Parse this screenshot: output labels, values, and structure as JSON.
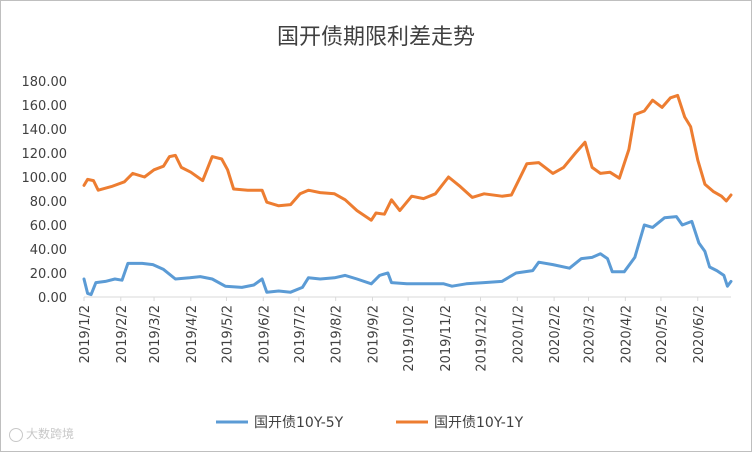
{
  "chart_data": {
    "type": "line",
    "title": "国开债期限利差走势",
    "xlabel": "",
    "ylabel": "",
    "ylim": [
      0,
      180
    ],
    "yticks": [
      "0.00",
      "20.00",
      "40.00",
      "60.00",
      "80.00",
      "100.00",
      "120.00",
      "140.00",
      "160.00",
      "180.00"
    ],
    "xticks": [
      "2019/1/2",
      "2019/2/2",
      "2019/3/2",
      "2019/4/2",
      "2019/5/2",
      "2019/6/2",
      "2019/7/2",
      "2019/8/2",
      "2019/9/2",
      "2019/10/2",
      "2019/11/2",
      "2019/12/2",
      "2020/1/2",
      "2020/2/2",
      "2020/3/2",
      "2020/4/2",
      "2020/5/2",
      "2020/6/2"
    ],
    "x_range": [
      "2019/1/2",
      "2020/6/30"
    ],
    "grid": false,
    "legend_position": "bottom",
    "series": [
      {
        "name": "国开债10Y-5Y",
        "color": "#5b9bd5",
        "points": [
          [
            "2019/1/2",
            15
          ],
          [
            "2019/1/5",
            3
          ],
          [
            "2019/1/8",
            2
          ],
          [
            "2019/1/12",
            12
          ],
          [
            "2019/1/20",
            13
          ],
          [
            "2019/1/28",
            15
          ],
          [
            "2019/2/3",
            14
          ],
          [
            "2019/2/8",
            28
          ],
          [
            "2019/2/20",
            28
          ],
          [
            "2019/3/1",
            27
          ],
          [
            "2019/3/10",
            23
          ],
          [
            "2019/3/20",
            15
          ],
          [
            "2019/4/1",
            16
          ],
          [
            "2019/4/10",
            17
          ],
          [
            "2019/4/20",
            15
          ],
          [
            "2019/5/1",
            9
          ],
          [
            "2019/5/15",
            8
          ],
          [
            "2019/5/25",
            10
          ],
          [
            "2019/6/1",
            15
          ],
          [
            "2019/6/5",
            4
          ],
          [
            "2019/6/15",
            5
          ],
          [
            "2019/6/25",
            4
          ],
          [
            "2019/7/5",
            8
          ],
          [
            "2019/7/10",
            16
          ],
          [
            "2019/7/20",
            15
          ],
          [
            "2019/8/1",
            16
          ],
          [
            "2019/8/10",
            18
          ],
          [
            "2019/8/20",
            15
          ],
          [
            "2019/9/1",
            11
          ],
          [
            "2019/9/8",
            18
          ],
          [
            "2019/9/15",
            20
          ],
          [
            "2019/9/18",
            12
          ],
          [
            "2019/10/1",
            11
          ],
          [
            "2019/10/15",
            11
          ],
          [
            "2019/11/1",
            11
          ],
          [
            "2019/11/8",
            9
          ],
          [
            "2019/11/20",
            11
          ],
          [
            "2019/12/5",
            12
          ],
          [
            "2019/12/20",
            13
          ],
          [
            "2020/1/1",
            20
          ],
          [
            "2020/1/15",
            22
          ],
          [
            "2020/1/20",
            29
          ],
          [
            "2020/2/1",
            27
          ],
          [
            "2020/2/15",
            24
          ],
          [
            "2020/2/25",
            32
          ],
          [
            "2020/3/5",
            33
          ],
          [
            "2020/3/12",
            36
          ],
          [
            "2020/3/18",
            32
          ],
          [
            "2020/3/22",
            21
          ],
          [
            "2020/4/1",
            21
          ],
          [
            "2020/4/10",
            33
          ],
          [
            "2020/4/18",
            60
          ],
          [
            "2020/4/25",
            58
          ],
          [
            "2020/5/5",
            66
          ],
          [
            "2020/5/15",
            67
          ],
          [
            "2020/5/20",
            60
          ],
          [
            "2020/5/28",
            63
          ],
          [
            "2020/6/3",
            45
          ],
          [
            "2020/6/8",
            38
          ],
          [
            "2020/6/12",
            25
          ],
          [
            "2020/6/18",
            22
          ],
          [
            "2020/6/24",
            18
          ],
          [
            "2020/6/27",
            9
          ],
          [
            "2020/6/30",
            13
          ]
        ]
      },
      {
        "name": "国开债10Y-1Y",
        "color": "#ed7d31",
        "points": [
          [
            "2019/1/2",
            93
          ],
          [
            "2019/1/5",
            98
          ],
          [
            "2019/1/10",
            97
          ],
          [
            "2019/1/14",
            89
          ],
          [
            "2019/1/25",
            92
          ],
          [
            "2019/2/5",
            96
          ],
          [
            "2019/2/12",
            103
          ],
          [
            "2019/2/22",
            100
          ],
          [
            "2019/3/2",
            106
          ],
          [
            "2019/3/10",
            109
          ],
          [
            "2019/3/15",
            117
          ],
          [
            "2019/3/20",
            118
          ],
          [
            "2019/3/25",
            108
          ],
          [
            "2019/4/2",
            104
          ],
          [
            "2019/4/12",
            97
          ],
          [
            "2019/4/20",
            117
          ],
          [
            "2019/4/28",
            115
          ],
          [
            "2019/5/3",
            106
          ],
          [
            "2019/5/8",
            90
          ],
          [
            "2019/5/20",
            89
          ],
          [
            "2019/6/1",
            89
          ],
          [
            "2019/6/5",
            79
          ],
          [
            "2019/6/15",
            76
          ],
          [
            "2019/6/25",
            77
          ],
          [
            "2019/7/3",
            86
          ],
          [
            "2019/7/10",
            89
          ],
          [
            "2019/7/20",
            87
          ],
          [
            "2019/8/1",
            86
          ],
          [
            "2019/8/10",
            81
          ],
          [
            "2019/8/20",
            72
          ],
          [
            "2019/9/1",
            64
          ],
          [
            "2019/9/5",
            70
          ],
          [
            "2019/9/12",
            69
          ],
          [
            "2019/9/18",
            81
          ],
          [
            "2019/9/25",
            72
          ],
          [
            "2019/10/5",
            84
          ],
          [
            "2019/10/15",
            82
          ],
          [
            "2019/10/25",
            86
          ],
          [
            "2019/11/5",
            100
          ],
          [
            "2019/11/15",
            92
          ],
          [
            "2019/11/25",
            83
          ],
          [
            "2019/12/5",
            86
          ],
          [
            "2019/12/20",
            84
          ],
          [
            "2019/12/28",
            85
          ],
          [
            "2020/1/5",
            101
          ],
          [
            "2020/1/10",
            111
          ],
          [
            "2020/1/20",
            112
          ],
          [
            "2020/2/1",
            103
          ],
          [
            "2020/2/10",
            108
          ],
          [
            "2020/2/20",
            120
          ],
          [
            "2020/2/28",
            129
          ],
          [
            "2020/3/5",
            108
          ],
          [
            "2020/3/12",
            103
          ],
          [
            "2020/3/20",
            104
          ],
          [
            "2020/3/28",
            99
          ],
          [
            "2020/4/5",
            123
          ],
          [
            "2020/4/10",
            152
          ],
          [
            "2020/4/18",
            155
          ],
          [
            "2020/4/25",
            164
          ],
          [
            "2020/5/3",
            158
          ],
          [
            "2020/5/10",
            166
          ],
          [
            "2020/5/16",
            168
          ],
          [
            "2020/5/22",
            150
          ],
          [
            "2020/5/27",
            142
          ],
          [
            "2020/6/2",
            114
          ],
          [
            "2020/6/8",
            94
          ],
          [
            "2020/6/15",
            88
          ],
          [
            "2020/6/22",
            84
          ],
          [
            "2020/6/26",
            80
          ],
          [
            "2020/6/30",
            85
          ]
        ]
      }
    ]
  },
  "watermark": "大数跨境"
}
